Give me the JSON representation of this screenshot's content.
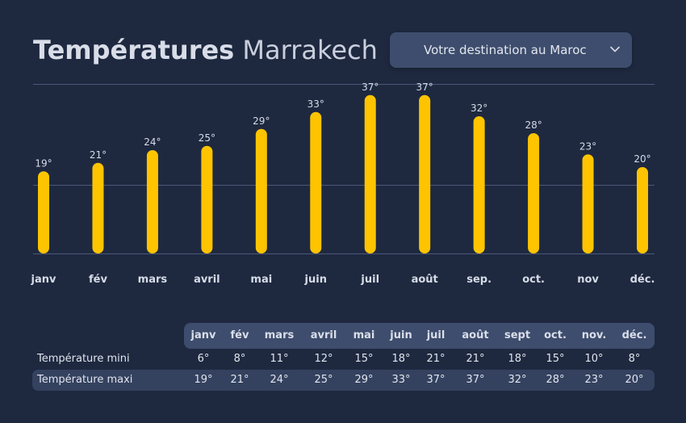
{
  "header": {
    "title_bold": "Températures",
    "title_light": "Marrakech"
  },
  "destination_select": {
    "label": "Votre destination au Maroc",
    "icon": "chevron-down-icon"
  },
  "colors": {
    "background": "#1e2940",
    "bar": "#ffc400",
    "panel": "#3e4d6d"
  },
  "chart_data": {
    "type": "bar",
    "categories": [
      "janv",
      "fév",
      "mars",
      "avril",
      "mai",
      "juin",
      "juil",
      "août",
      "sep.",
      "oct.",
      "nov",
      "déc."
    ],
    "values": [
      19,
      21,
      24,
      25,
      29,
      33,
      37,
      37,
      32,
      28,
      23,
      20
    ],
    "value_labels": [
      "19°",
      "21°",
      "24°",
      "25°",
      "29°",
      "33°",
      "37°",
      "37°",
      "32°",
      "28°",
      "23°",
      "20°"
    ],
    "ylim": [
      0,
      40
    ],
    "grid": true
  },
  "table": {
    "headers": [
      "janv",
      "fév",
      "mars",
      "avril",
      "mai",
      "juin",
      "juil",
      "août",
      "sept",
      "oct.",
      "nov.",
      "déc."
    ],
    "rows": [
      {
        "label": "Température mini",
        "values": [
          "6°",
          "8°",
          "11°",
          "12°",
          "15°",
          "18°",
          "21°",
          "21°",
          "18°",
          "15°",
          "10°",
          "8°"
        ]
      },
      {
        "label": "Température maxi",
        "values": [
          "19°",
          "21°",
          "24°",
          "25°",
          "29°",
          "33°",
          "37°",
          "37°",
          "32°",
          "28°",
          "23°",
          "20°"
        ]
      }
    ]
  }
}
